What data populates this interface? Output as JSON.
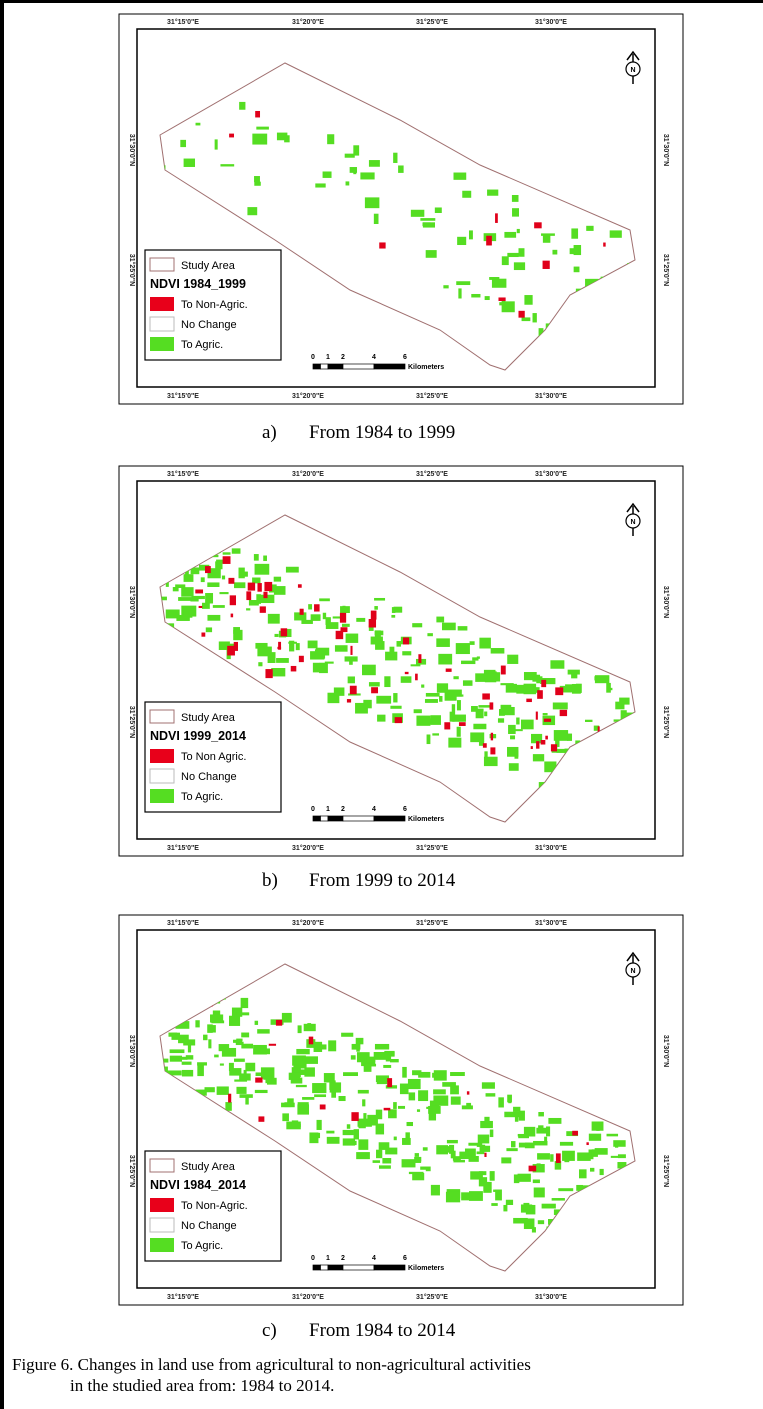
{
  "map_frame": {
    "top_labels": [
      "31°15'0\"E",
      "31°20'0\"E",
      "31°25'0\"E",
      "31°30'0\"E"
    ],
    "left_labels": [
      "31°30'0\"N",
      "31°25'0\"N"
    ],
    "north": "N",
    "scale_ticks": [
      "0",
      "1",
      "2",
      "4",
      "6"
    ],
    "scale_unit": "Kilometers",
    "study_area": "Study Area"
  },
  "panels": [
    {
      "letter": "a)",
      "caption": "From 1984 to 1999",
      "legend_title": "NDVI 1984_1999",
      "legend_items": [
        "To Non-Agric.",
        "No Change",
        "To Agric."
      ]
    },
    {
      "letter": "b)",
      "caption": "From 1999 to 2014",
      "legend_title": "NDVI 1999_2014",
      "legend_items": [
        "To Non Agric.",
        "No Change",
        "To Agric."
      ]
    },
    {
      "letter": "c)",
      "caption": "From 1984 to 2014",
      "legend_title": "NDVI 1984_2014",
      "legend_items": [
        "To Non-Agric.",
        "No Change",
        "To Agric."
      ]
    }
  ],
  "figure_caption": [
    "Figure 6. Changes in land use from agricultural to non-agricultural activities",
    "in the studied area from: 1984 to 2014."
  ]
}
